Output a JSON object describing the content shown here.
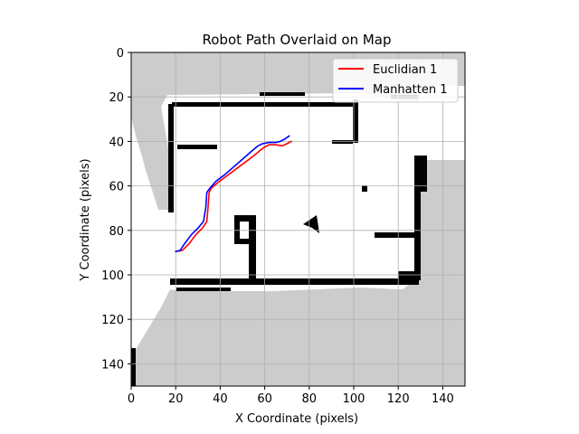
{
  "chart_data": {
    "type": "line",
    "title": "Robot Path Overlaid on Map",
    "xlabel": "X Coordinate (pixels)",
    "ylabel": "Y Coordinate (pixels)",
    "xlim": [
      0,
      150
    ],
    "ylim": [
      150,
      0
    ],
    "xticks": [
      0,
      20,
      40,
      60,
      80,
      100,
      120,
      140
    ],
    "yticks": [
      0,
      20,
      40,
      60,
      80,
      100,
      120,
      140
    ],
    "grid": true,
    "legend_position": "top-right",
    "series": [
      {
        "name": "Euclidian 1",
        "color": "#ff0000",
        "x": [
          20,
          23,
          26,
          29,
          32,
          34,
          34.5,
          35,
          36,
          39,
          43,
          47,
          51,
          55,
          58,
          60,
          62,
          65,
          68,
          70,
          72
        ],
        "y": [
          89.5,
          89,
          86,
          82,
          79,
          76,
          70,
          63,
          61,
          58.5,
          55.5,
          52.5,
          49.5,
          46.5,
          44,
          42.5,
          41.5,
          41.5,
          42,
          41,
          40
        ]
      },
      {
        "name": "Manhatten 1",
        "color": "#0000ff",
        "x": [
          20,
          22,
          24,
          27,
          30,
          32.5,
          33.5,
          34,
          35,
          38,
          42,
          46,
          50,
          54,
          57,
          59,
          62,
          65,
          67,
          69,
          71
        ],
        "y": [
          89.5,
          89,
          86,
          82,
          79,
          76,
          70,
          63,
          61.5,
          58,
          55,
          51.5,
          48,
          44.5,
          42,
          41,
          40.5,
          40.5,
          40,
          39,
          37.5
        ]
      }
    ],
    "background_map": {
      "free_space_color": "#ffffff",
      "unknown_color": "#cccccc",
      "wall_color": "#000000"
    }
  }
}
